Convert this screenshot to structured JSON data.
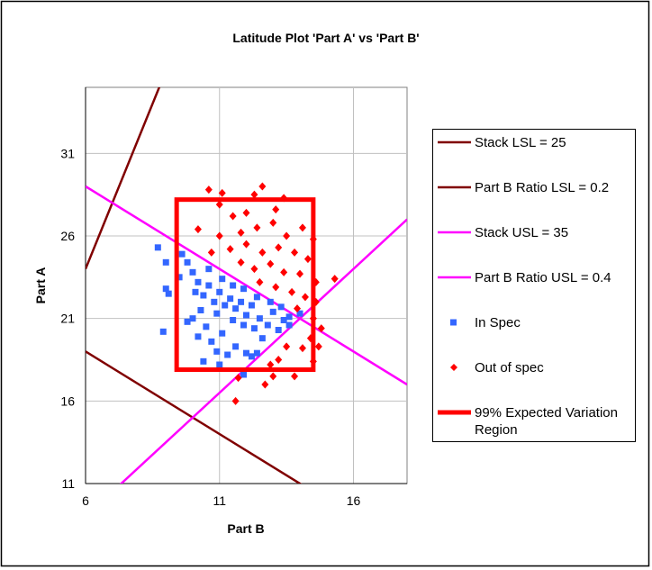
{
  "chart_data": {
    "type": "scatter",
    "title": "Latitude Plot 'Part A' vs 'Part B'",
    "xlabel": "Part B",
    "ylabel": "Part A",
    "xlim": [
      6,
      18
    ],
    "ylim": [
      11,
      35
    ],
    "xticks": [
      6,
      11,
      16
    ],
    "yticks": [
      11,
      16,
      21,
      26,
      31
    ],
    "grid": true,
    "legend_position": "right",
    "lines": [
      {
        "name": "Stack LSL = 25",
        "kind": "stack",
        "value": 25,
        "color": "#800000"
      },
      {
        "name": "Part B Ratio LSL = 0.2",
        "kind": "ratio",
        "value": 0.2,
        "color": "#800000"
      },
      {
        "name": "Stack USL = 35",
        "kind": "stack",
        "value": 35,
        "color": "#FF00FF"
      },
      {
        "name": "Part B Ratio USL = 0.4",
        "kind": "ratio",
        "value": 0.4,
        "color": "#FF00FF"
      }
    ],
    "series": [
      {
        "name": "In Spec",
        "marker": "square",
        "color": "#3366FF",
        "points": [
          [
            8.7,
            25.3
          ],
          [
            9.0,
            24.4
          ],
          [
            9.0,
            22.8
          ],
          [
            9.1,
            22.5
          ],
          [
            8.9,
            20.2
          ],
          [
            9.5,
            23.5
          ],
          [
            9.6,
            24.9
          ],
          [
            9.8,
            24.4
          ],
          [
            10.0,
            23.8
          ],
          [
            10.2,
            23.2
          ],
          [
            10.4,
            22.4
          ],
          [
            10.6,
            23.0
          ],
          [
            10.8,
            22.0
          ],
          [
            10.3,
            21.5
          ],
          [
            10.0,
            21.0
          ],
          [
            10.5,
            20.5
          ],
          [
            10.9,
            21.3
          ],
          [
            11.0,
            22.6
          ],
          [
            11.2,
            21.8
          ],
          [
            11.4,
            22.2
          ],
          [
            11.5,
            20.9
          ],
          [
            11.6,
            21.6
          ],
          [
            11.8,
            22.0
          ],
          [
            11.9,
            20.6
          ],
          [
            12.0,
            21.2
          ],
          [
            12.2,
            21.8
          ],
          [
            12.3,
            20.4
          ],
          [
            12.5,
            21.0
          ],
          [
            12.6,
            19.8
          ],
          [
            12.8,
            20.6
          ],
          [
            13.0,
            21.4
          ],
          [
            13.2,
            20.3
          ],
          [
            13.4,
            20.9
          ],
          [
            13.6,
            21.1
          ],
          [
            13.6,
            20.6
          ],
          [
            14.0,
            21.3
          ],
          [
            10.7,
            19.6
          ],
          [
            10.9,
            19.0
          ],
          [
            11.3,
            18.8
          ],
          [
            11.6,
            19.3
          ],
          [
            12.0,
            18.9
          ],
          [
            12.2,
            18.7
          ],
          [
            12.4,
            18.9
          ],
          [
            11.1,
            20.1
          ],
          [
            10.2,
            19.9
          ],
          [
            9.8,
            20.8
          ],
          [
            10.1,
            22.6
          ],
          [
            10.6,
            24.0
          ],
          [
            11.1,
            23.4
          ],
          [
            11.5,
            23.0
          ],
          [
            11.9,
            22.8
          ],
          [
            12.4,
            22.3
          ],
          [
            12.9,
            22.0
          ],
          [
            13.3,
            21.7
          ],
          [
            11.9,
            17.6
          ],
          [
            11.0,
            18.2
          ],
          [
            10.4,
            18.4
          ]
        ]
      },
      {
        "name": "Out of spec",
        "marker": "diamond",
        "color": "#FF0000",
        "points": [
          [
            10.6,
            28.8
          ],
          [
            11.1,
            28.6
          ],
          [
            11.0,
            27.9
          ],
          [
            12.6,
            29.0
          ],
          [
            12.3,
            28.5
          ],
          [
            13.4,
            28.3
          ],
          [
            12.0,
            27.4
          ],
          [
            11.5,
            27.2
          ],
          [
            13.1,
            27.6
          ],
          [
            10.2,
            26.4
          ],
          [
            11.0,
            26.0
          ],
          [
            11.8,
            26.2
          ],
          [
            12.4,
            26.5
          ],
          [
            13.0,
            26.8
          ],
          [
            13.5,
            26.0
          ],
          [
            14.1,
            26.5
          ],
          [
            14.5,
            25.8
          ],
          [
            10.7,
            25.0
          ],
          [
            11.4,
            25.2
          ],
          [
            12.0,
            25.5
          ],
          [
            12.6,
            25.0
          ],
          [
            13.2,
            25.3
          ],
          [
            13.8,
            25.0
          ],
          [
            14.3,
            24.6
          ],
          [
            11.8,
            24.4
          ],
          [
            12.3,
            24.0
          ],
          [
            12.9,
            24.3
          ],
          [
            13.4,
            23.8
          ],
          [
            14.0,
            23.7
          ],
          [
            14.6,
            23.2
          ],
          [
            15.3,
            23.4
          ],
          [
            12.5,
            23.2
          ],
          [
            13.1,
            22.9
          ],
          [
            13.7,
            22.6
          ],
          [
            14.2,
            22.3
          ],
          [
            14.6,
            22.0
          ],
          [
            13.9,
            21.6
          ],
          [
            14.5,
            21.0
          ],
          [
            14.8,
            20.4
          ],
          [
            14.4,
            19.8
          ],
          [
            14.1,
            19.2
          ],
          [
            13.5,
            19.3
          ],
          [
            13.2,
            18.5
          ],
          [
            14.7,
            19.3
          ],
          [
            14.5,
            18.4
          ],
          [
            13.0,
            17.5
          ],
          [
            13.8,
            17.5
          ],
          [
            12.7,
            17.0
          ],
          [
            11.6,
            16.0
          ],
          [
            12.9,
            18.2
          ],
          [
            11.7,
            17.4
          ]
        ]
      }
    ],
    "region": {
      "name": "99% Expected Variation Region",
      "b_range": [
        9.4,
        14.5
      ],
      "a_range": [
        17.9,
        28.2
      ],
      "color": "#FF0000"
    }
  }
}
